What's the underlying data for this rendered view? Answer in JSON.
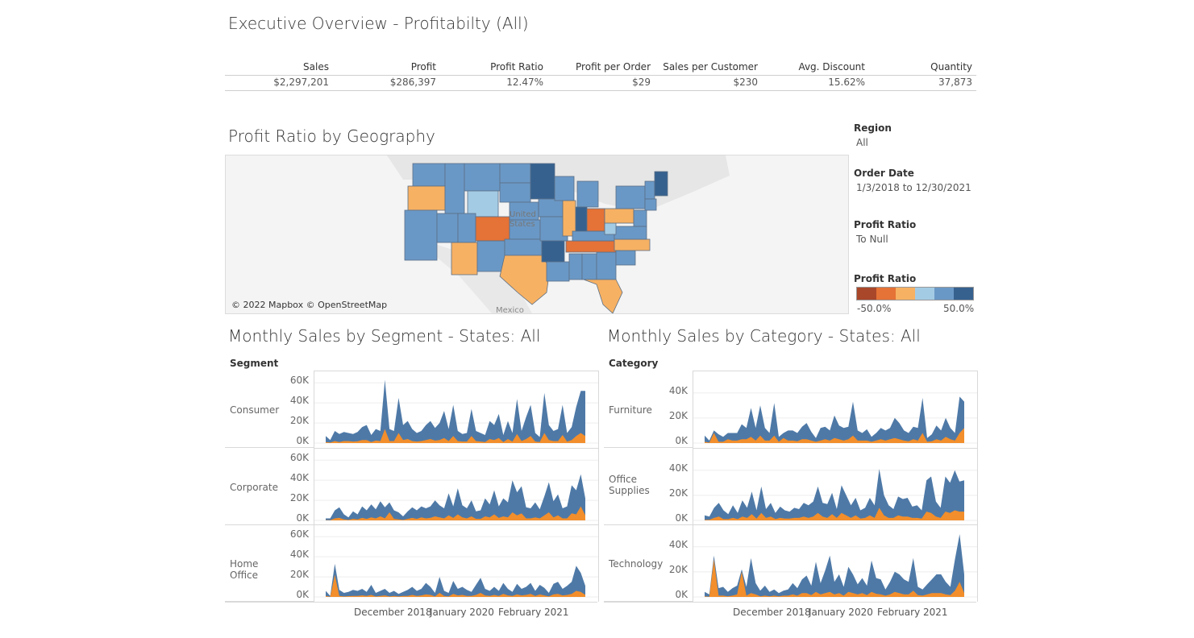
{
  "page": {
    "title": "Executive Overview - Profitabilty (All)"
  },
  "kpis": [
    {
      "label": "Sales",
      "value": "$2,297,201"
    },
    {
      "label": "Profit",
      "value": "$286,397"
    },
    {
      "label": "Profit Ratio",
      "value": "12.47%"
    },
    {
      "label": "Profit per Order",
      "value": "$29"
    },
    {
      "label": "Sales per Customer",
      "value": "$230"
    },
    {
      "label": "Avg. Discount",
      "value": "15.62%"
    },
    {
      "label": "Quantity",
      "value": "37,873"
    }
  ],
  "map": {
    "title": "Profit Ratio by Geography",
    "attribution": "© 2022 Mapbox © OpenStreetMap",
    "country_label": "Mexico",
    "us_label": "United States"
  },
  "filters": {
    "region": {
      "title": "Region",
      "value": "All"
    },
    "order_date": {
      "title": "Order Date",
      "value": "1/3/2018 to 12/30/2021"
    },
    "profit_ratio": {
      "title": "Profit Ratio",
      "value": "To Null"
    }
  },
  "legend": {
    "title": "Profit Ratio",
    "min_label": "-50.0%",
    "max_label": "50.0%",
    "colors": [
      "#a9472b",
      "#e57236",
      "#f7b163",
      "#a4cbe4",
      "#6a98c6",
      "#36618f"
    ]
  },
  "colors": {
    "sales": "#4e79a7",
    "profit": "#f28e2b"
  },
  "chart_data": [
    {
      "type": "area",
      "title": "Monthly Sales by Segment - States: All",
      "facet_header": "Segment",
      "facets": [
        {
          "name": "Consumer",
          "sales": [
            7,
            3,
            12,
            9,
            11,
            10,
            9,
            11,
            16,
            18,
            8,
            14,
            12,
            63,
            14,
            12,
            45,
            18,
            22,
            14,
            10,
            12,
            18,
            22,
            15,
            20,
            32,
            14,
            38,
            12,
            9,
            10,
            34,
            12,
            10,
            8,
            22,
            18,
            29,
            8,
            22,
            10,
            44,
            12,
            26,
            38,
            10,
            6,
            50,
            18,
            12,
            14,
            38,
            10,
            16,
            36,
            52,
            52
          ],
          "profit": [
            1,
            0.5,
            2,
            1,
            2,
            2,
            1.5,
            1.8,
            3,
            3,
            1,
            2.5,
            2,
            14,
            2,
            2,
            10,
            3,
            4,
            2,
            1.5,
            2,
            3,
            4,
            2.5,
            3,
            5,
            2,
            7,
            2,
            1.5,
            1.5,
            7,
            2,
            1.5,
            1,
            4,
            3,
            5,
            1,
            4,
            1.5,
            9,
            2,
            4,
            7,
            1.5,
            1,
            10,
            3,
            2,
            2,
            8,
            1.5,
            3,
            7,
            10,
            7
          ]
        },
        {
          "name": "Corporate",
          "sales": [
            2,
            2,
            10,
            13,
            6,
            3,
            9,
            6,
            14,
            10,
            16,
            11,
            19,
            13,
            18,
            10,
            8,
            4,
            9,
            13,
            10,
            14,
            12,
            14,
            20,
            15,
            12,
            27,
            14,
            32,
            15,
            12,
            20,
            9,
            10,
            22,
            16,
            30,
            14,
            22,
            18,
            40,
            28,
            34,
            13,
            12,
            18,
            11,
            24,
            38,
            19,
            26,
            12,
            14,
            35,
            30,
            46,
            22
          ],
          "profit": [
            0.3,
            0.2,
            2,
            2.5,
            1,
            0.5,
            1.5,
            1,
            2.5,
            1.5,
            3,
            2,
            4,
            2,
            8,
            1.5,
            1,
            0.5,
            1.5,
            2.5,
            1.5,
            3,
            2,
            2.5,
            4,
            3,
            2,
            5,
            2.5,
            6,
            3,
            2,
            4,
            1.5,
            1.5,
            4,
            3,
            6,
            2.5,
            4,
            3,
            8,
            5,
            7,
            2,
            2,
            3,
            2,
            5,
            8,
            3,
            5,
            2,
            2,
            7,
            6,
            14,
            5
          ]
        },
        {
          "name": "Home Office",
          "sales": [
            6,
            1,
            33,
            7,
            4,
            5,
            7,
            6,
            8,
            5,
            12,
            4,
            6,
            8,
            4,
            6,
            3,
            5,
            7,
            10,
            6,
            8,
            14,
            10,
            4,
            20,
            6,
            4,
            16,
            8,
            10,
            7,
            5,
            12,
            19,
            8,
            6,
            10,
            6,
            14,
            8,
            5,
            13,
            8,
            10,
            14,
            6,
            12,
            9,
            4,
            13,
            15,
            8,
            11,
            15,
            31,
            24,
            11
          ],
          "profit": [
            1,
            0.2,
            22,
            1,
            0.5,
            0.8,
            1,
            1,
            1.5,
            1,
            2,
            0.5,
            1,
            1.5,
            0.5,
            1,
            0.5,
            1,
            1,
            2,
            1,
            1.5,
            2.5,
            2,
            0.5,
            4,
            1,
            0.5,
            3,
            1.5,
            2,
            1,
            1,
            2,
            4,
            1.5,
            1,
            2,
            1,
            3,
            1.5,
            1,
            2.5,
            1.5,
            2,
            3,
            1,
            2.5,
            1.5,
            0.5,
            2.5,
            3,
            1.5,
            2,
            3,
            6,
            5,
            2
          ]
        }
      ],
      "yticks": [
        "60K",
        "40K",
        "20K",
        "0K"
      ],
      "xticks": [
        "December 2018",
        "January 2020",
        "February 2021"
      ]
    },
    {
      "type": "area",
      "title": "Monthly Sales by Category - States: All",
      "facet_header": "Category",
      "facets": [
        {
          "name": "Furniture",
          "sales": [
            6,
            2,
            10,
            7,
            5,
            8,
            8,
            8,
            15,
            12,
            28,
            12,
            30,
            12,
            8,
            32,
            5,
            8,
            10,
            10,
            8,
            13,
            16,
            9,
            4,
            12,
            13,
            10,
            22,
            14,
            12,
            13,
            33,
            10,
            8,
            11,
            5,
            8,
            12,
            10,
            12,
            20,
            16,
            10,
            8,
            13,
            12,
            36,
            4,
            7,
            14,
            10,
            20,
            12,
            8,
            37,
            33
          ],
          "profit": [
            1,
            0.3,
            8,
            1,
            1,
            3,
            2,
            2,
            3,
            3,
            5,
            2,
            6,
            2,
            2,
            6,
            1,
            4,
            2,
            2,
            1.5,
            3,
            3,
            2,
            1,
            2,
            3,
            2,
            4,
            3,
            2,
            3,
            6,
            2,
            2,
            2,
            1,
            2,
            3,
            2,
            3,
            4,
            3,
            2,
            1.5,
            3,
            2,
            8,
            1,
            1.5,
            3,
            2,
            5,
            3,
            2,
            8,
            12
          ]
        },
        {
          "name": "Office Supplies",
          "sales": [
            4,
            3,
            10,
            14,
            8,
            5,
            12,
            6,
            16,
            10,
            23,
            8,
            27,
            9,
            14,
            6,
            11,
            8,
            7,
            10,
            9,
            14,
            12,
            15,
            27,
            14,
            13,
            22,
            9,
            28,
            20,
            12,
            18,
            8,
            10,
            18,
            12,
            41,
            20,
            12,
            9,
            19,
            17,
            18,
            11,
            12,
            8,
            32,
            35,
            15,
            10,
            35,
            30,
            40,
            31,
            32
          ],
          "profit": [
            0.5,
            0.5,
            2,
            3,
            1,
            1,
            2,
            1,
            3,
            2,
            5,
            1.5,
            6,
            2,
            3,
            1,
            2,
            1.5,
            1.5,
            2,
            2,
            3,
            2,
            3,
            6,
            3,
            2,
            5,
            2,
            6,
            4,
            2,
            4,
            1.5,
            2,
            4,
            2,
            10,
            4,
            2,
            2,
            4,
            3,
            3,
            2,
            2,
            1.5,
            7,
            6,
            3,
            2,
            7,
            6,
            8,
            7,
            7
          ]
        },
        {
          "name": "Technology",
          "sales": [
            4,
            2,
            33,
            7,
            8,
            4,
            7,
            9,
            22,
            8,
            31,
            11,
            5,
            9,
            4,
            6,
            3,
            5,
            6,
            11,
            7,
            14,
            17,
            9,
            28,
            11,
            21,
            33,
            12,
            18,
            8,
            24,
            18,
            10,
            15,
            9,
            29,
            15,
            14,
            6,
            12,
            20,
            18,
            14,
            12,
            31,
            8,
            6,
            10,
            14,
            18,
            18,
            12,
            8,
            30,
            50,
            18
          ],
          "profit": [
            0.5,
            0.2,
            30,
            1,
            1,
            0.5,
            1,
            2,
            20,
            1,
            3,
            2,
            0.5,
            1,
            0.5,
            1,
            0.5,
            1,
            1,
            2,
            1,
            3,
            3,
            1.5,
            4,
            2,
            3,
            4,
            2,
            3,
            1,
            4,
            3,
            2,
            3,
            1.5,
            4,
            2.5,
            2,
            1,
            2,
            4,
            3,
            2,
            2,
            5,
            1.5,
            1,
            2,
            3,
            3,
            3,
            2,
            1.5,
            5,
            12,
            3
          ]
        }
      ],
      "yticks": [
        "40K",
        "20K",
        "0K"
      ],
      "xticks": [
        "December 2018",
        "January 2020",
        "February 2021"
      ]
    }
  ]
}
